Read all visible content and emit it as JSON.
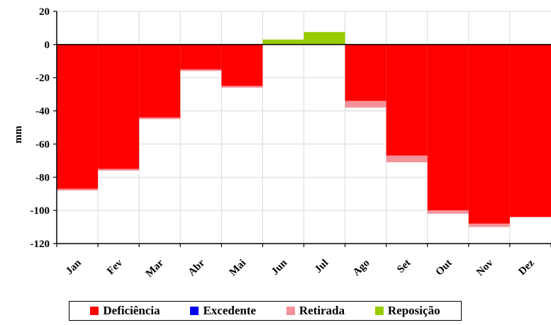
{
  "chart_data": {
    "type": "bar",
    "ylabel": "mm",
    "ylim": [
      -120,
      20
    ],
    "yticks": [
      20,
      0,
      -20,
      -40,
      -60,
      -80,
      -100,
      -120
    ],
    "categories": [
      "Jan",
      "Fev",
      "Mar",
      "Abr",
      "Mai",
      "Jun",
      "Jul",
      "Ago",
      "Set",
      "Out",
      "Nov",
      "Dez"
    ],
    "grid": true,
    "legend_position": "bottom",
    "series": [
      {
        "name": "Deficiência",
        "color": "#ff0000",
        "values": [
          -87,
          -75,
          -44,
          -15,
          -25,
          0,
          0,
          -34,
          -67,
          -100,
          -108,
          -104
        ]
      },
      {
        "name": "Excedente",
        "color": "#0000ee",
        "values": [
          0,
          0,
          0,
          0,
          0,
          0,
          0,
          0,
          0,
          0,
          0,
          0
        ]
      },
      {
        "name": "Retirada",
        "color": "#f4929a",
        "values": [
          -1,
          -1,
          -1,
          -1,
          -1,
          0,
          0,
          -4,
          -4,
          -2,
          -2,
          0
        ]
      },
      {
        "name": "Reposição",
        "color": "#99cc00",
        "values": [
          0,
          0,
          0,
          0,
          0,
          3,
          7.5,
          0,
          0,
          0,
          0,
          0
        ]
      }
    ]
  }
}
